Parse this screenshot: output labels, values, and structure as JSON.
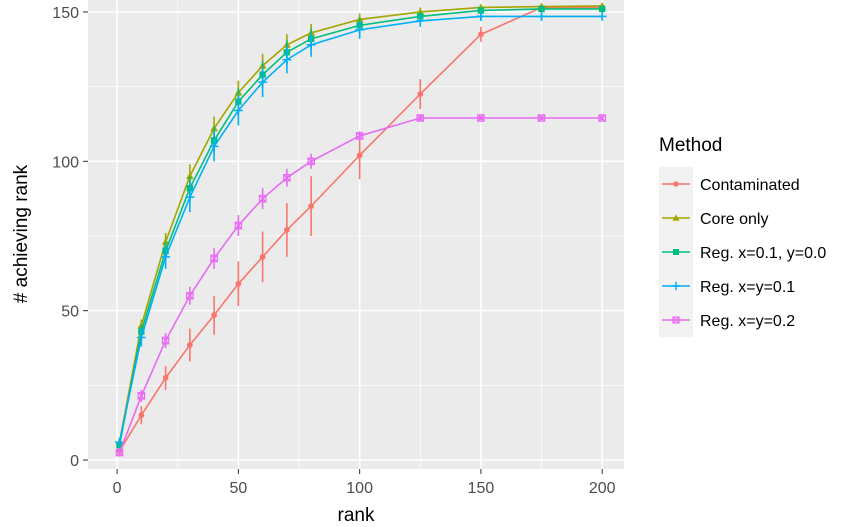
{
  "chart_data": {
    "type": "line",
    "xlabel": "rank",
    "ylabel": "# achieving rank",
    "xlim": [
      -12,
      209
    ],
    "ylim": [
      -3,
      154
    ],
    "xticks": [
      0,
      50,
      100,
      150,
      200
    ],
    "yticks": [
      0,
      50,
      100,
      150
    ],
    "grid": true,
    "legend": {
      "title": "Method",
      "placement": "right"
    },
    "x": [
      1,
      10,
      20,
      30,
      40,
      50,
      60,
      70,
      80,
      100,
      125,
      150,
      175,
      200
    ],
    "series": [
      {
        "name": "Contaminated",
        "color": "#F8766D",
        "marker": "circle",
        "values": [
          3,
          15,
          27.5,
          38.5,
          48.5,
          59,
          68,
          77,
          85,
          102,
          122.5,
          142.5,
          151.5,
          151.5
        ],
        "errors": [
          1,
          3,
          4,
          5.5,
          6.5,
          7.5,
          8.5,
          9,
          10,
          8,
          5,
          2.5,
          1,
          1
        ]
      },
      {
        "name": "Core only",
        "color": "#A3A500",
        "marker": "triangle",
        "values": [
          6,
          45,
          73,
          95,
          111,
          123,
          132,
          139,
          143,
          147.5,
          150,
          151.5,
          151.8,
          152
        ],
        "errors": [
          1,
          2,
          3,
          4,
          4,
          4,
          4,
          3.5,
          3,
          2,
          1.5,
          1,
          1,
          1
        ]
      },
      {
        "name": "Reg. x=0.1, y=0.0",
        "color": "#00BF7D",
        "marker": "square",
        "values": [
          5,
          43,
          70,
          91,
          107,
          120,
          129,
          136.5,
          141,
          145.5,
          148.5,
          150.5,
          151,
          151
        ],
        "errors": [
          1,
          2,
          3,
          4,
          4.5,
          4.5,
          4.5,
          4,
          3.5,
          2.5,
          1.5,
          1,
          1,
          1
        ]
      },
      {
        "name": "Reg. x=y=0.1",
        "color": "#00B0F6",
        "marker": "plus",
        "values": [
          6,
          41,
          68,
          88,
          105,
          117,
          126.5,
          134,
          139,
          144,
          147,
          148.5,
          148.5,
          148.5
        ],
        "errors": [
          1,
          3,
          4,
          5,
          5,
          5,
          5,
          4.5,
          4,
          3,
          2,
          1.5,
          1,
          1
        ]
      },
      {
        "name": "Reg. x=y=0.2",
        "color": "#E76BF3",
        "marker": "square-x",
        "values": [
          2.5,
          21.5,
          40,
          55,
          67.5,
          78.5,
          87.5,
          94.5,
          100,
          108.5,
          114.5,
          114.5,
          114.5,
          114.5
        ],
        "errors": [
          1,
          2,
          2.5,
          3,
          3.5,
          3.5,
          3.5,
          3,
          2.5,
          1.5,
          1,
          0.8,
          0.8,
          0.8
        ]
      }
    ]
  }
}
